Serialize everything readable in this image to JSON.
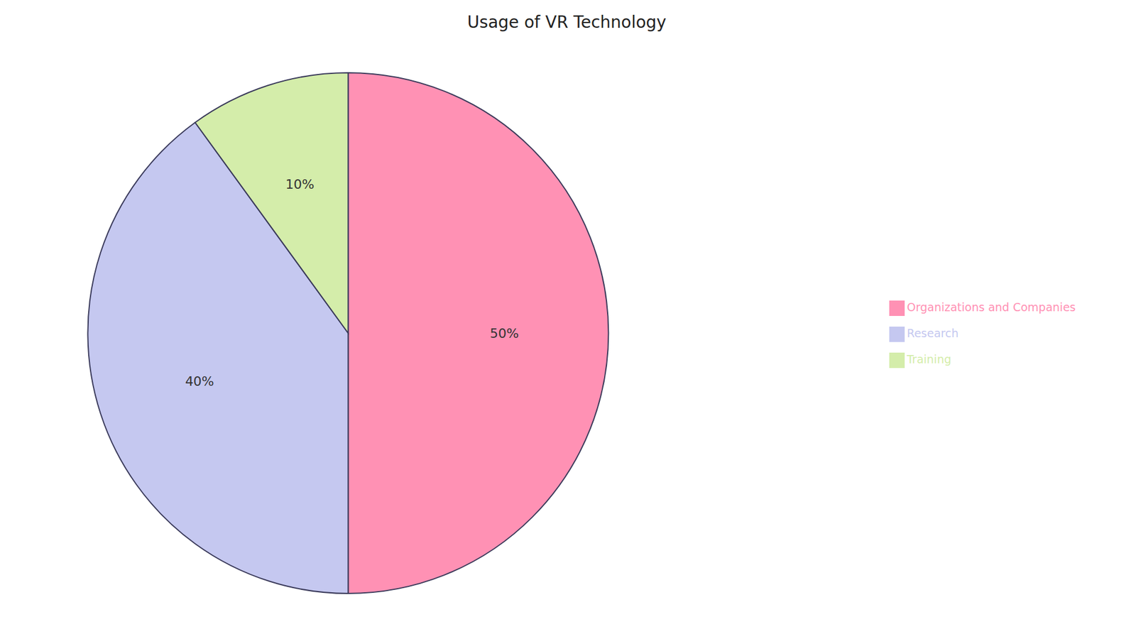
{
  "chart_data": {
    "type": "pie",
    "title": "Usage of VR Technology",
    "categories": [
      "Organizations and Companies",
      "Research",
      "Training"
    ],
    "values": [
      50,
      40,
      10
    ],
    "value_labels": [
      "50%",
      "40%",
      "10%"
    ],
    "colors": [
      "#FF91B4",
      "#C5C8F0",
      "#D4EDAA"
    ],
    "data_labels": true,
    "legend": "right"
  }
}
